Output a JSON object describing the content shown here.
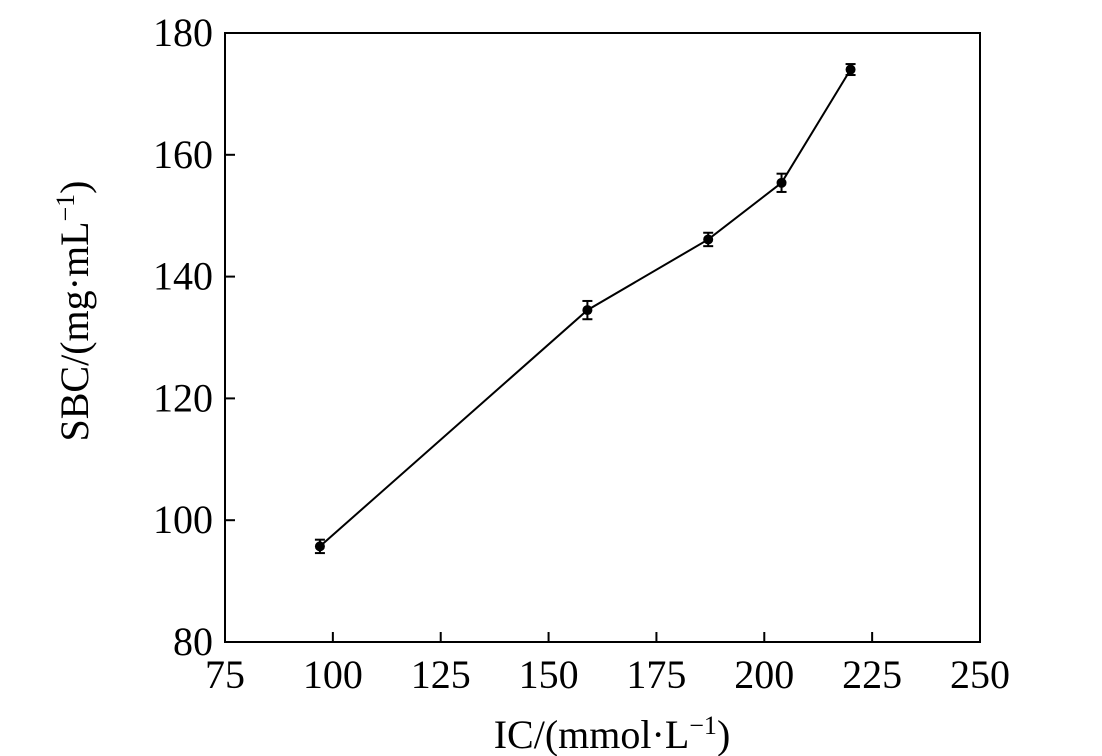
{
  "chart_data": {
    "type": "line",
    "xlabel": {
      "prefix": "IC/(mmol·L",
      "sup": "−1",
      "suffix": ")"
    },
    "ylabel": {
      "prefix": "SBC/(mg·mL",
      "sup": "−1",
      "suffix": ")"
    },
    "xlim": [
      75,
      250
    ],
    "ylim": [
      80,
      180
    ],
    "xticks": [
      "75",
      "100",
      "125",
      "150",
      "175",
      "200",
      "225",
      "250"
    ],
    "yticks": [
      "80",
      "100",
      "120",
      "140",
      "160",
      "180"
    ],
    "grid": false,
    "series": [
      {
        "x": [
          97,
          159,
          187,
          204,
          220
        ],
        "y": [
          95.7,
          134.5,
          146.1,
          155.4,
          174.0
        ],
        "error": [
          1.1,
          1.5,
          1.1,
          1.5,
          0.9
        ],
        "marker": "circle",
        "color": "#000000"
      }
    ]
  }
}
